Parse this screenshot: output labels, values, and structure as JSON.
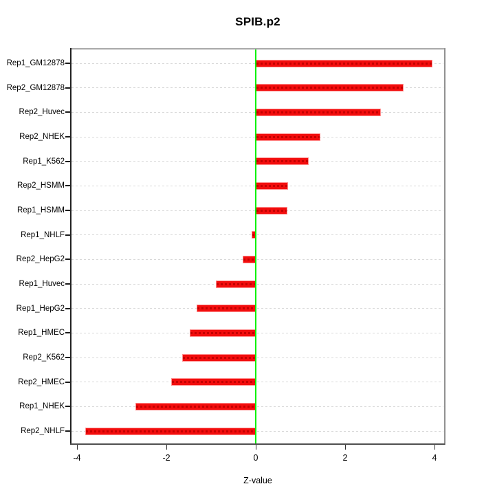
{
  "figure": {
    "title": "SPIB.p2",
    "xlabel": "Z-value"
  },
  "chart_data": {
    "type": "bar",
    "orientation": "horizontal",
    "title": "SPIB.p2",
    "xlabel": "Z-value",
    "ylabel": "",
    "categories": [
      "Rep1_GM12878",
      "Rep2_GM12878",
      "Rep2_Huvec",
      "Rep2_NHEK",
      "Rep1_K562",
      "Rep2_HSMM",
      "Rep1_HSMM",
      "Rep1_NHLF",
      "Rep2_HepG2",
      "Rep1_Huvec",
      "Rep1_HepG2",
      "Rep1_HMEC",
      "Rep2_K562",
      "Rep2_HMEC",
      "Rep1_NHEK",
      "Rep2_NHLF"
    ],
    "values": [
      3.95,
      3.3,
      2.8,
      1.45,
      1.18,
      0.72,
      0.7,
      -0.1,
      -0.3,
      -0.9,
      -1.33,
      -1.47,
      -1.64,
      -1.9,
      -2.7,
      -3.82
    ],
    "xlim": [
      -4.2,
      4.25
    ],
    "xticks": [
      -4,
      -2,
      0,
      2,
      4
    ],
    "xtick_labels": [
      "-4",
      "-2",
      "0",
      "2",
      "4"
    ],
    "grid": "dashed horizontal line at each bar row",
    "zero_reference_line": 0,
    "legend": "none",
    "colors": {
      "bar": "#f20d0d",
      "bar_dash_overlay": "#c40000",
      "zero_line": "#00f200",
      "gridline": "#d9d9d9",
      "box_top": "#a9a9a9",
      "box_right": "#909090",
      "box_left": "#202020",
      "box_bottom": "#4f4f4f",
      "text": "#000000"
    }
  }
}
